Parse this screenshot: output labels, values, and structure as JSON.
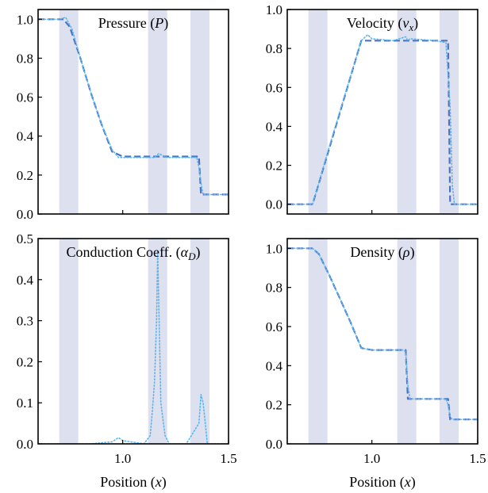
{
  "chart_data": [
    {
      "type": "line",
      "title": "Pressure (P)",
      "xlabel": "",
      "ylabel": "",
      "xlim": [
        0.6,
        1.5
      ],
      "ylim": [
        0.0,
        1.05
      ],
      "xticks": [
        1.0
      ],
      "xtick_labels": [
        ""
      ],
      "yticks": [
        0.0,
        0.2,
        0.4,
        0.6,
        0.8,
        1.0
      ],
      "ytick_labels": [
        "0.0",
        "0.2",
        "0.4",
        "0.6",
        "0.8",
        "1.0"
      ],
      "shaded_bands": [
        [
          0.7,
          0.79
        ],
        [
          1.12,
          1.21
        ],
        [
          1.32,
          1.41
        ]
      ],
      "series": [
        {
          "style": "dashed",
          "color": "#4c72c4",
          "x": [
            0.6,
            0.72,
            0.75,
            0.8,
            0.85,
            0.9,
            0.95,
            1.0,
            1.2,
            1.36,
            1.37,
            1.5
          ],
          "y": [
            1.0,
            1.0,
            0.96,
            0.8,
            0.62,
            0.46,
            0.32,
            0.295,
            0.295,
            0.295,
            0.1,
            0.1
          ]
        },
        {
          "style": "dotted",
          "color": "#58b6f0",
          "x": [
            0.6,
            0.7,
            0.73,
            0.76,
            0.8,
            0.85,
            0.9,
            0.95,
            0.98,
            1.0,
            1.1,
            1.15,
            1.17,
            1.19,
            1.21,
            1.3,
            1.35,
            1.36,
            1.37,
            1.38,
            1.5
          ],
          "y": [
            1.0,
            1.0,
            1.01,
            0.95,
            0.8,
            0.62,
            0.46,
            0.33,
            0.29,
            0.29,
            0.29,
            0.29,
            0.31,
            0.3,
            0.29,
            0.29,
            0.29,
            0.24,
            0.16,
            0.1,
            0.1
          ]
        }
      ]
    },
    {
      "type": "line",
      "title": "Velocity (vx)",
      "xlabel": "",
      "ylabel": "",
      "xlim": [
        0.6,
        1.5
      ],
      "ylim": [
        -0.05,
        1.0
      ],
      "xticks": [
        1.0
      ],
      "xtick_labels": [
        ""
      ],
      "yticks": [
        0.0,
        0.2,
        0.4,
        0.6,
        0.8,
        1.0
      ],
      "ytick_labels": [
        "0.0",
        "0.2",
        "0.4",
        "0.6",
        "0.8",
        "1.0"
      ],
      "shaded_bands": [
        [
          0.7,
          0.79
        ],
        [
          1.12,
          1.21
        ],
        [
          1.32,
          1.41
        ]
      ],
      "series": [
        {
          "style": "dashed",
          "color": "#4c72c4",
          "x": [
            0.6,
            0.72,
            0.95,
            1.2,
            1.36,
            1.37,
            1.5
          ],
          "y": [
            0.0,
            0.0,
            0.84,
            0.84,
            0.84,
            0.0,
            0.0
          ]
        },
        {
          "style": "dotted",
          "color": "#58b6f0",
          "x": [
            0.6,
            0.72,
            0.8,
            0.9,
            0.95,
            0.98,
            1.0,
            1.1,
            1.16,
            1.17,
            1.18,
            1.3,
            1.35,
            1.37,
            1.38,
            1.39,
            1.5
          ],
          "y": [
            0.0,
            0.0,
            0.3,
            0.66,
            0.84,
            0.87,
            0.85,
            0.84,
            0.86,
            0.84,
            0.85,
            0.84,
            0.83,
            0.5,
            0.1,
            0.0,
            0.0
          ]
        }
      ]
    },
    {
      "type": "line",
      "title": "Conduction Coeff. (αD)",
      "xlabel": "Position (x)",
      "ylabel": "",
      "xlim": [
        0.6,
        1.5
      ],
      "ylim": [
        0.0,
        0.5
      ],
      "xticks": [
        1.0,
        1.5
      ],
      "xtick_labels": [
        "1.0",
        "1.5"
      ],
      "yticks": [
        0.0,
        0.1,
        0.2,
        0.3,
        0.4,
        0.5
      ],
      "ytick_labels": [
        "0.0",
        "0.1",
        "0.2",
        "0.3",
        "0.4",
        "0.5"
      ],
      "shaded_bands": [
        [
          0.7,
          0.79
        ],
        [
          1.12,
          1.21
        ],
        [
          1.32,
          1.41
        ]
      ],
      "series": [
        {
          "style": "dotted",
          "color": "#58b6f0",
          "x": [
            0.6,
            0.85,
            0.95,
            0.98,
            1.0,
            1.1,
            1.13,
            1.14,
            1.15,
            1.16,
            1.165,
            1.17,
            1.18,
            1.2,
            1.22,
            1.3,
            1.36,
            1.37,
            1.38,
            1.39,
            1.4,
            1.5
          ],
          "y": [
            0.0,
            0.0,
            0.005,
            0.015,
            0.008,
            0.0,
            0.02,
            0.08,
            0.15,
            0.3,
            0.47,
            0.35,
            0.1,
            0.02,
            0.0,
            0.0,
            0.05,
            0.12,
            0.1,
            0.05,
            0.0,
            0.0
          ]
        }
      ]
    },
    {
      "type": "line",
      "title": "Density (ρ)",
      "xlabel": "Position (x)",
      "ylabel": "",
      "xlim": [
        0.6,
        1.5
      ],
      "ylim": [
        0.0,
        1.05
      ],
      "xticks": [
        1.0,
        1.5
      ],
      "xtick_labels": [
        "1.0",
        "1.5"
      ],
      "yticks": [
        0.0,
        0.2,
        0.4,
        0.6,
        0.8,
        1.0
      ],
      "ytick_labels": [
        "0.0",
        "0.2",
        "0.4",
        "0.6",
        "0.8",
        "1.0"
      ],
      "shaded_bands": [
        [
          0.7,
          0.79
        ],
        [
          1.12,
          1.21
        ],
        [
          1.32,
          1.41
        ]
      ],
      "series": [
        {
          "style": "dashed",
          "color": "#4c72c4",
          "x": [
            0.6,
            0.72,
            0.75,
            0.8,
            0.85,
            0.9,
            0.95,
            1.0,
            1.16,
            1.17,
            1.36,
            1.37,
            1.5
          ],
          "y": [
            1.0,
            1.0,
            0.97,
            0.86,
            0.74,
            0.62,
            0.49,
            0.48,
            0.48,
            0.23,
            0.23,
            0.125,
            0.125
          ]
        },
        {
          "style": "dotted",
          "color": "#58b6f0",
          "x": [
            0.6,
            0.72,
            0.75,
            0.8,
            0.85,
            0.9,
            0.95,
            1.0,
            1.15,
            1.16,
            1.17,
            1.18,
            1.2,
            1.35,
            1.36,
            1.37,
            1.38,
            1.5
          ],
          "y": [
            1.0,
            1.0,
            0.97,
            0.86,
            0.74,
            0.62,
            0.49,
            0.48,
            0.48,
            0.47,
            0.3,
            0.23,
            0.23,
            0.23,
            0.2,
            0.14,
            0.125,
            0.125
          ]
        }
      ]
    }
  ]
}
